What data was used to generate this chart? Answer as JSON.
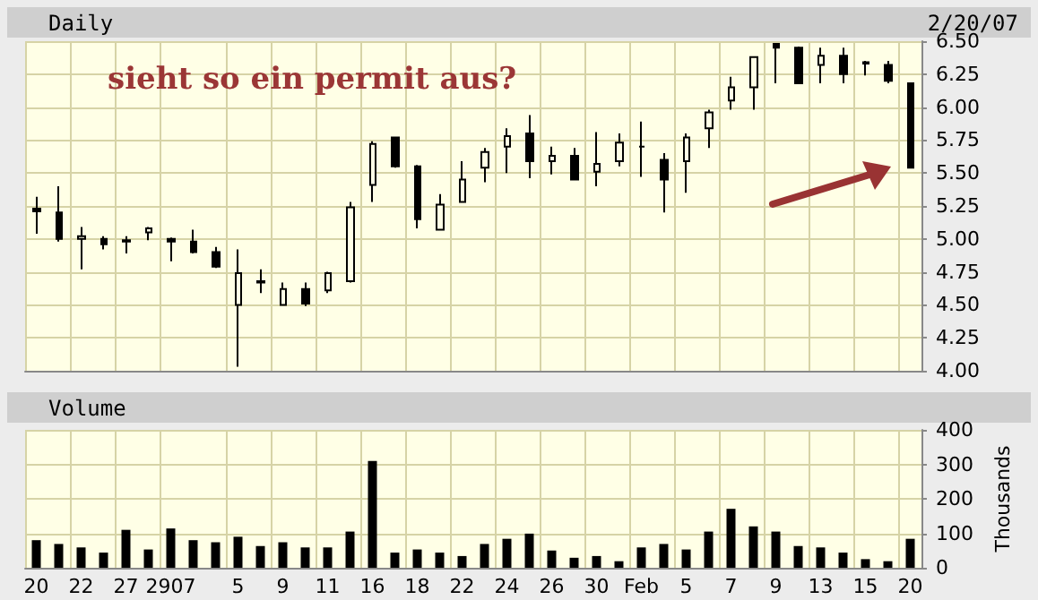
{
  "chart_data": [
    {
      "type": "candlestick",
      "title": "Daily",
      "subtitle": "2/20/07",
      "annotations": [
        "sieht so ein permit aus?"
      ],
      "categories": [
        null,
        null,
        null,
        null,
        null,
        null,
        null,
        null,
        null,
        null,
        null,
        null,
        null,
        null,
        null,
        null,
        null,
        null,
        null,
        null,
        null,
        null,
        null,
        null,
        null,
        null,
        null,
        null,
        null,
        null,
        null,
        null,
        null,
        null,
        null,
        null,
        null,
        null,
        null,
        null
      ],
      "ohlc": [
        [
          5.23,
          5.32,
          5.04,
          5.21
        ],
        [
          5.2,
          5.4,
          4.98,
          5.0
        ],
        [
          5.0,
          5.09,
          4.77,
          5.02
        ],
        [
          5.0,
          5.02,
          4.92,
          4.96
        ],
        [
          4.98,
          5.02,
          4.89,
          4.99
        ],
        [
          5.05,
          5.09,
          4.99,
          5.08
        ],
        [
          5.0,
          5.01,
          4.83,
          4.98
        ],
        [
          4.98,
          5.07,
          4.89,
          4.9
        ],
        [
          4.9,
          4.94,
          4.78,
          4.79
        ],
        [
          4.5,
          4.92,
          4.03,
          4.74
        ],
        [
          4.68,
          4.77,
          4.59,
          4.67
        ],
        [
          4.5,
          4.67,
          4.5,
          4.62
        ],
        [
          4.62,
          4.67,
          4.49,
          4.51
        ],
        [
          4.61,
          4.75,
          4.59,
          4.74
        ],
        [
          4.68,
          5.28,
          4.67,
          5.24
        ],
        [
          5.41,
          5.74,
          5.28,
          5.72
        ],
        [
          5.77,
          5.77,
          5.54,
          5.55
        ],
        [
          5.55,
          5.56,
          5.08,
          5.15
        ],
        [
          5.07,
          5.34,
          5.07,
          5.26
        ],
        [
          5.28,
          5.59,
          5.28,
          5.45
        ],
        [
          5.54,
          5.69,
          5.43,
          5.66
        ],
        [
          5.7,
          5.84,
          5.5,
          5.78
        ],
        [
          5.8,
          5.94,
          5.46,
          5.59
        ],
        [
          5.59,
          5.7,
          5.49,
          5.63
        ],
        [
          5.63,
          5.69,
          5.45,
          5.45
        ],
        [
          5.51,
          5.81,
          5.4,
          5.57
        ],
        [
          5.59,
          5.8,
          5.55,
          5.73
        ],
        [
          5.7,
          5.89,
          5.47,
          5.7
        ],
        [
          5.6,
          5.65,
          5.2,
          5.45
        ],
        [
          5.59,
          5.8,
          5.35,
          5.77
        ],
        [
          5.84,
          5.98,
          5.69,
          5.96
        ],
        [
          6.05,
          6.23,
          5.98,
          6.15
        ],
        [
          6.15,
          6.38,
          5.98,
          6.38
        ],
        [
          6.48,
          6.48,
          6.18,
          6.45
        ],
        [
          6.45,
          6.46,
          6.18,
          6.18
        ],
        [
          6.32,
          6.45,
          6.18,
          6.39
        ],
        [
          6.39,
          6.45,
          6.18,
          6.25
        ],
        [
          6.34,
          6.35,
          6.24,
          6.33
        ],
        [
          6.32,
          6.35,
          6.18,
          6.2
        ],
        [
          6.18,
          6.18,
          5.54,
          5.54
        ]
      ],
      "color": "#000000",
      "ylim": [
        4,
        6.5
      ],
      "yticks": [
        {
          "value": 4,
          "label": "4.00"
        },
        {
          "value": 4.25,
          "label": "4.25"
        },
        {
          "value": 4.5,
          "label": "4.50"
        },
        {
          "value": 4.75,
          "label": "4.75"
        },
        {
          "value": 5,
          "label": "5.00"
        },
        {
          "value": 5.25,
          "label": "5.25"
        },
        {
          "value": 5.5,
          "label": "5.50"
        },
        {
          "value": 5.75,
          "label": "5.75"
        },
        {
          "value": 6,
          "label": "6.00"
        },
        {
          "value": 6.25,
          "label": "6.25"
        },
        {
          "value": 6.5,
          "label": "6.50"
        }
      ],
      "grid": true,
      "tick_labels": "y"
    },
    {
      "type": "bar",
      "title": "Volume",
      "ylabel": "Thousands",
      "categories": [
        "20",
        null,
        "22",
        null,
        "27",
        null,
        "2907",
        null,
        null,
        "5",
        null,
        "9",
        null,
        "11",
        null,
        "16",
        null,
        "18",
        null,
        "22",
        null,
        "24",
        null,
        "26",
        null,
        "30",
        null,
        "Feb",
        null,
        "5",
        null,
        "7",
        null,
        "9",
        null,
        "13",
        null,
        "15",
        null,
        "20"
      ],
      "values": [
        80,
        69,
        59,
        44,
        110,
        53,
        114,
        80,
        74,
        90,
        63,
        74,
        59,
        59,
        105,
        310,
        44,
        53,
        44,
        34,
        69,
        84,
        99,
        50,
        29,
        34,
        19,
        59,
        69,
        53,
        105,
        171,
        120,
        105,
        63,
        59,
        44,
        25,
        19,
        84
      ],
      "color": "#000000",
      "ylim": [
        0,
        400
      ],
      "yticks": [
        0,
        100,
        200,
        300,
        400
      ],
      "grid": true
    }
  ]
}
